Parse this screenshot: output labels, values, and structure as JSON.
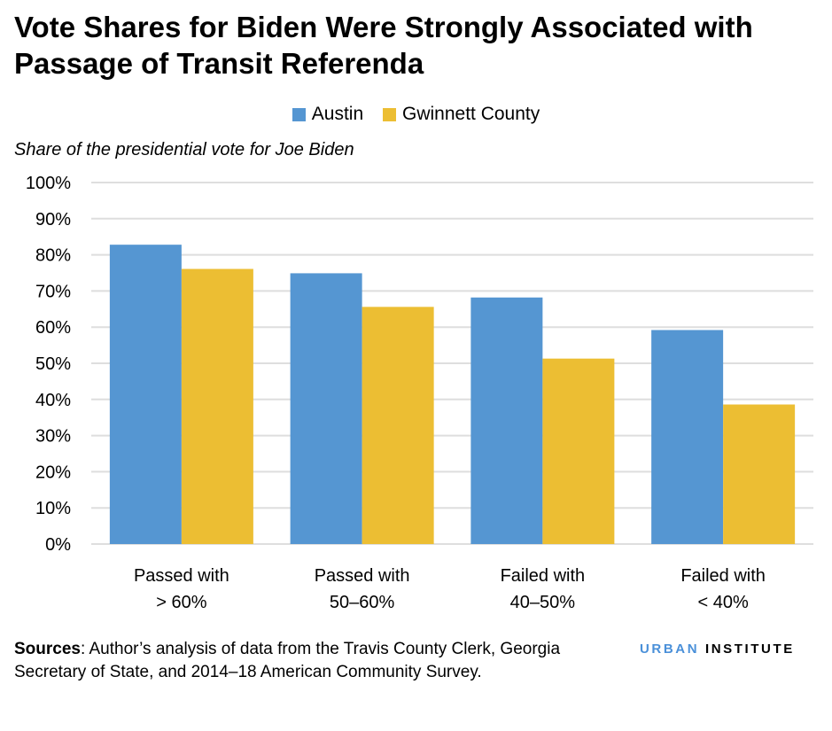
{
  "title": "Vote Shares for Biden Were Strongly Associated with Passage of Transit Referenda",
  "colors": {
    "austin": "#5596d2",
    "gwinnett": "#ecbe33",
    "grid": "#dedede",
    "logo_urban": "#4a90d9",
    "logo_institute": "#000000"
  },
  "chart_data": {
    "type": "bar",
    "title": "Vote Shares for Biden Were Strongly Associated with Passage of Transit Referenda",
    "ylabel": "Share of the presidential vote for Joe Biden",
    "xlabel": "",
    "ylim": [
      0,
      100
    ],
    "yticks": [
      "0%",
      "10%",
      "20%",
      "30%",
      "40%",
      "50%",
      "60%",
      "70%",
      "80%",
      "90%",
      "100%"
    ],
    "grid": true,
    "legend_position": "top",
    "categories": [
      [
        "Passed with",
        "> 60%"
      ],
      [
        "Passed with",
        "50–60%"
      ],
      [
        "Failed with",
        "40–50%"
      ],
      [
        "Failed with",
        "< 40%"
      ]
    ],
    "series": [
      {
        "name": "Austin",
        "values": [
          82.8,
          74.9,
          68.2,
          59.2
        ]
      },
      {
        "name": "Gwinnett County",
        "values": [
          76.1,
          65.6,
          51.3,
          38.6
        ]
      }
    ]
  },
  "sources": {
    "label": "Sources",
    "text": ": Author’s analysis of data from the Travis County Clerk, Georgia Secretary of State, and 2014–18 American Community Survey."
  },
  "logo": {
    "part1": "URBAN",
    "part2": "INSTITUTE"
  }
}
